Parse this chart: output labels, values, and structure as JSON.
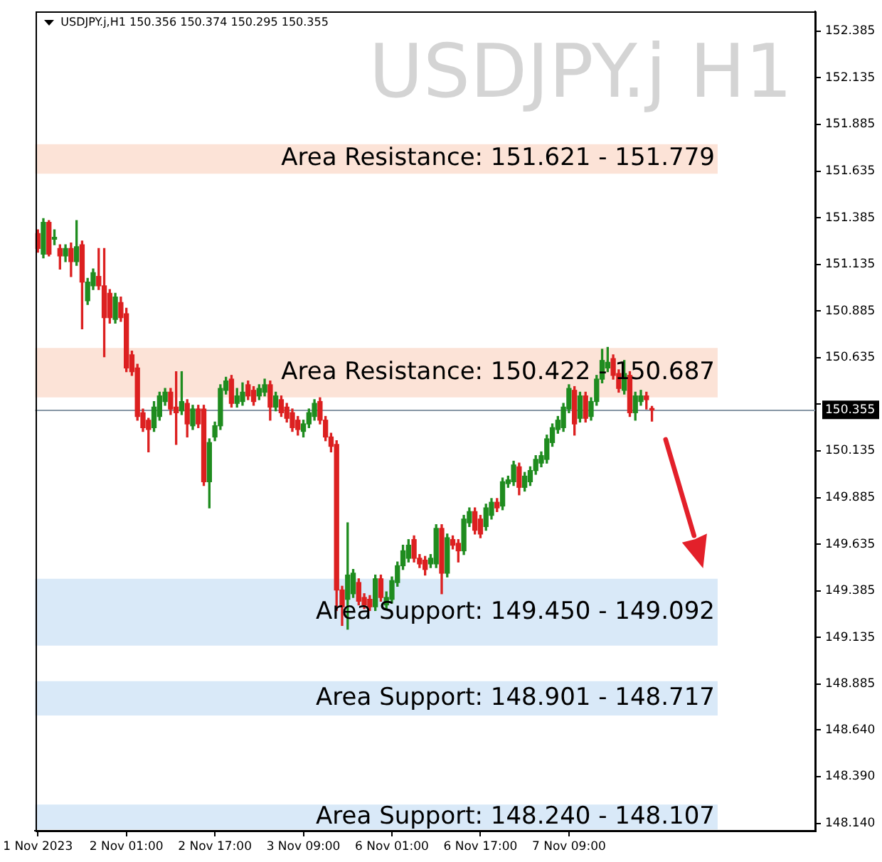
{
  "chart_data": {
    "type": "candlestick",
    "title": "USDJPY.j H1",
    "subtitle": "USDJPY.j,H1 150.356 150.374 150.295 150.355",
    "categories": [
      "1 Nov 2023",
      null,
      null,
      null,
      null,
      null,
      null,
      null,
      null,
      null,
      null,
      null,
      null,
      null,
      null,
      null,
      "2 Nov 01:00",
      null,
      null,
      null,
      null,
      null,
      null,
      null,
      null,
      null,
      null,
      null,
      null,
      null,
      null,
      null,
      "2 Nov 17:00",
      null,
      null,
      null,
      null,
      null,
      null,
      null,
      null,
      null,
      null,
      null,
      null,
      null,
      null,
      null,
      "3 Nov 09:00",
      null,
      null,
      null,
      null,
      null,
      null,
      null,
      null,
      null,
      null,
      null,
      null,
      null,
      null,
      null,
      "6 Nov 01:00",
      null,
      null,
      null,
      null,
      null,
      null,
      null,
      null,
      null,
      null,
      null,
      null,
      null,
      null,
      null,
      "6 Nov 17:00",
      null,
      null,
      null,
      null,
      null,
      null,
      null,
      null,
      null,
      null,
      null,
      null,
      null,
      null,
      null,
      "7 Nov 09:00",
      null,
      null,
      null,
      null,
      null,
      null,
      null,
      null,
      null,
      null,
      null,
      null,
      null,
      null,
      null,
      null,
      null,
      null,
      null,
      null,
      null,
      null,
      null,
      null,
      null,
      null,
      null,
      null,
      null,
      null,
      null,
      null,
      null,
      null,
      null,
      null,
      null,
      null,
      null,
      null,
      null,
      null,
      null,
      null
    ],
    "ohlc": [
      [
        151.3,
        151.32,
        151.2,
        151.22
      ],
      [
        151.19,
        151.38,
        151.17,
        151.36
      ],
      [
        151.36,
        151.37,
        151.18,
        151.19
      ],
      [
        151.27,
        151.32,
        151.24,
        151.28
      ],
      [
        151.22,
        151.24,
        151.11,
        151.18
      ],
      [
        151.18,
        151.24,
        151.15,
        151.22
      ],
      [
        151.22,
        151.25,
        151.07,
        151.15
      ],
      [
        151.15,
        151.37,
        151.13,
        151.23
      ],
      [
        151.24,
        151.26,
        150.79,
        151.04
      ],
      [
        150.94,
        151.06,
        150.92,
        151.04
      ],
      [
        151.02,
        151.11,
        151.0,
        151.09
      ],
      [
        151.07,
        151.22,
        151.0,
        151.02
      ],
      [
        151.02,
        151.22,
        150.64,
        150.85
      ],
      [
        150.98,
        151.0,
        150.82,
        150.85
      ],
      [
        150.84,
        150.98,
        150.82,
        150.96
      ],
      [
        150.93,
        150.96,
        150.83,
        150.85
      ],
      [
        150.87,
        150.9,
        150.56,
        150.58
      ],
      [
        150.65,
        150.67,
        150.54,
        150.56
      ],
      [
        150.58,
        150.6,
        150.3,
        150.32
      ],
      [
        150.34,
        150.36,
        150.24,
        150.26
      ],
      [
        150.3,
        150.31,
        150.13,
        150.25
      ],
      [
        150.26,
        150.4,
        150.24,
        150.37
      ],
      [
        150.32,
        150.45,
        150.3,
        150.43
      ],
      [
        150.4,
        150.47,
        150.38,
        150.45
      ],
      [
        150.45,
        150.47,
        150.33,
        150.36
      ],
      [
        150.37,
        150.56,
        150.17,
        150.34
      ],
      [
        150.35,
        150.56,
        150.33,
        150.4
      ],
      [
        150.39,
        150.41,
        150.21,
        150.28
      ],
      [
        150.27,
        150.38,
        150.25,
        150.36
      ],
      [
        150.36,
        150.38,
        150.26,
        150.28
      ],
      [
        150.36,
        150.38,
        149.95,
        149.97
      ],
      [
        149.97,
        150.2,
        149.83,
        150.18
      ],
      [
        150.21,
        150.29,
        150.19,
        150.27
      ],
      [
        150.27,
        150.49,
        150.25,
        150.47
      ],
      [
        150.46,
        150.53,
        150.44,
        150.51
      ],
      [
        150.52,
        150.54,
        150.37,
        150.39
      ],
      [
        150.39,
        150.47,
        150.37,
        150.43
      ],
      [
        150.4,
        150.5,
        150.38,
        150.45
      ],
      [
        150.49,
        150.51,
        150.41,
        150.43
      ],
      [
        150.46,
        150.48,
        150.38,
        150.4
      ],
      [
        150.43,
        150.49,
        150.41,
        150.47
      ],
      [
        150.45,
        150.52,
        150.43,
        150.49
      ],
      [
        150.49,
        150.51,
        150.3,
        150.37
      ],
      [
        150.37,
        150.45,
        150.35,
        150.43
      ],
      [
        150.41,
        150.43,
        150.32,
        150.34
      ],
      [
        150.37,
        150.39,
        150.29,
        150.31
      ],
      [
        150.34,
        150.36,
        150.24,
        150.26
      ],
      [
        150.3,
        150.32,
        150.22,
        150.25
      ],
      [
        150.24,
        150.3,
        150.21,
        150.28
      ],
      [
        150.28,
        150.36,
        150.26,
        150.34
      ],
      [
        150.32,
        150.41,
        150.3,
        150.39
      ],
      [
        150.4,
        150.42,
        150.28,
        150.3
      ],
      [
        150.3,
        150.32,
        150.19,
        150.21
      ],
      [
        150.21,
        150.23,
        150.13,
        150.16
      ],
      [
        150.17,
        150.19,
        149.28,
        149.39
      ],
      [
        149.39,
        149.41,
        149.2,
        149.3
      ],
      [
        149.34,
        149.75,
        149.18,
        149.47
      ],
      [
        149.37,
        149.5,
        149.35,
        149.48
      ],
      [
        149.43,
        149.45,
        149.31,
        149.33
      ],
      [
        149.35,
        149.37,
        149.29,
        149.31
      ],
      [
        149.34,
        149.36,
        149.28,
        149.3
      ],
      [
        149.3,
        149.47,
        149.28,
        149.45
      ],
      [
        149.45,
        149.47,
        149.33,
        149.35
      ],
      [
        149.31,
        149.38,
        149.29,
        149.35
      ],
      [
        149.34,
        149.46,
        149.32,
        149.44
      ],
      [
        149.43,
        149.54,
        149.41,
        149.52
      ],
      [
        149.52,
        149.63,
        149.5,
        149.6
      ],
      [
        149.56,
        149.66,
        149.54,
        149.63
      ],
      [
        149.66,
        149.68,
        149.54,
        149.56
      ],
      [
        149.56,
        149.58,
        149.51,
        149.53
      ],
      [
        149.55,
        149.57,
        149.47,
        149.5
      ],
      [
        149.53,
        149.58,
        149.51,
        149.56
      ],
      [
        149.53,
        149.74,
        149.51,
        149.72
      ],
      [
        149.72,
        149.74,
        149.37,
        149.48
      ],
      [
        149.48,
        149.69,
        149.46,
        149.67
      ],
      [
        149.66,
        149.68,
        149.61,
        149.63
      ],
      [
        149.64,
        149.66,
        149.54,
        149.6
      ],
      [
        149.6,
        149.79,
        149.58,
        149.77
      ],
      [
        149.75,
        149.83,
        149.73,
        149.81
      ],
      [
        149.81,
        149.83,
        149.69,
        149.71
      ],
      [
        149.77,
        149.79,
        149.67,
        149.69
      ],
      [
        149.73,
        149.85,
        149.71,
        149.83
      ],
      [
        149.79,
        149.88,
        149.77,
        149.86
      ],
      [
        149.86,
        149.88,
        149.81,
        149.83
      ],
      [
        149.84,
        149.99,
        149.82,
        149.97
      ],
      [
        149.96,
        150.0,
        149.94,
        149.98
      ],
      [
        149.97,
        150.08,
        149.95,
        150.06
      ],
      [
        150.05,
        150.07,
        149.9,
        149.94
      ],
      [
        149.94,
        150.02,
        149.92,
        150.0
      ],
      [
        149.97,
        150.05,
        149.95,
        150.03
      ],
      [
        150.03,
        150.11,
        150.01,
        150.09
      ],
      [
        150.07,
        150.13,
        150.05,
        150.11
      ],
      [
        150.09,
        150.22,
        150.07,
        150.2
      ],
      [
        150.18,
        150.28,
        150.16,
        150.26
      ],
      [
        150.25,
        150.32,
        150.23,
        150.3
      ],
      [
        150.26,
        150.39,
        150.24,
        150.37
      ],
      [
        150.36,
        150.49,
        150.34,
        150.47
      ],
      [
        150.46,
        150.48,
        150.22,
        150.28
      ],
      [
        150.31,
        150.45,
        150.29,
        150.43
      ],
      [
        150.43,
        150.45,
        150.29,
        150.31
      ],
      [
        150.32,
        150.42,
        150.3,
        150.4
      ],
      [
        150.4,
        150.54,
        150.38,
        150.52
      ],
      [
        150.52,
        150.68,
        150.5,
        150.62
      ],
      [
        150.58,
        150.69,
        150.56,
        150.61
      ],
      [
        150.63,
        150.65,
        150.52,
        150.54
      ],
      [
        150.55,
        150.57,
        150.45,
        150.47
      ],
      [
        150.46,
        150.62,
        150.44,
        150.55
      ],
      [
        150.54,
        150.56,
        150.32,
        150.34
      ],
      [
        150.34,
        150.45,
        150.3,
        150.43
      ],
      [
        150.4,
        150.46,
        150.38,
        150.43
      ],
      [
        150.43,
        150.45,
        150.36,
        150.41
      ],
      [
        150.356,
        150.374,
        150.295,
        150.355
      ],
      null,
      null,
      null,
      null,
      null,
      null,
      null,
      null,
      null,
      null,
      null,
      null,
      null,
      null,
      null,
      null,
      null,
      null,
      null,
      null,
      null,
      null,
      null,
      null,
      null,
      null,
      null,
      null,
      null
    ],
    "ylim": [
      148.1,
      152.49
    ],
    "yticks": [
      {
        "value": 148.14,
        "label": "148.140"
      },
      {
        "value": 148.39,
        "label": "148.390"
      },
      {
        "value": 148.64,
        "label": "148.640"
      },
      148.885,
      149.135,
      149.385,
      149.635,
      149.885,
      150.135,
      {
        "value": 150.385,
        "label": null
      },
      150.635,
      150.885,
      151.135,
      151.385,
      151.635,
      151.885,
      152.135,
      152.385
    ],
    "bands": [
      {
        "axis": "y",
        "from": 151.621,
        "to": 151.779,
        "label": "Area Resistance: 151.621 - 151.779",
        "color": "#fce3d7"
      },
      {
        "axis": "y",
        "from": 150.422,
        "to": 150.687,
        "label": "Area Resistance: 150.422 - 150.687",
        "color": "#fce3d7"
      },
      {
        "axis": "y",
        "from": 149.45,
        "to": 149.092,
        "label": "Area Support: 149.450 - 149.092",
        "color": "#d9e9f8"
      },
      {
        "axis": "y",
        "from": 148.901,
        "to": 148.717,
        "label": "Area Support: 148.901 - 148.717",
        "color": "#d9e9f8"
      },
      {
        "axis": "y",
        "from": 148.24,
        "to": 148.107,
        "label": "Area Support: 148.240 - 148.107",
        "color": "#d9e9f8"
      }
    ],
    "ref_lines": [
      {
        "axis": "y",
        "value": 150.355,
        "label": "150.355",
        "color": "#8796a5"
      }
    ]
  }
}
